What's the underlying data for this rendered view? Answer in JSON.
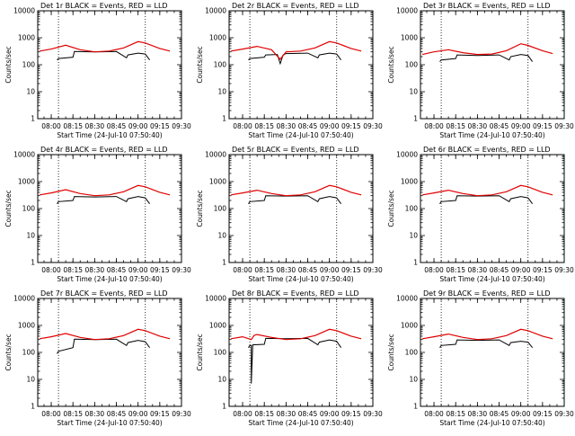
{
  "colors": {
    "events": "#000000",
    "lld": "#e00000",
    "background": "#ffffff"
  },
  "chart_data": [
    {
      "type": "line",
      "title": "Det 1r BLACK = Events, RED = LLD",
      "xlabel": "Start Time (24-Jul-10 07:50:40)",
      "ylabel": "Counts/sec",
      "yscale": "log",
      "ylim": [
        1,
        10000
      ],
      "xlim": [
        "07:50:40",
        "09:30"
      ],
      "xticks": [
        "08:00",
        "08:15",
        "08:30",
        "08:45",
        "09:00",
        "09:15",
        "09:30"
      ],
      "yticks": [
        "1",
        "10",
        "100",
        "1000",
        "10000"
      ],
      "vertical_markers": [
        "08:05",
        "09:05"
      ],
      "series": [
        {
          "name": "Events",
          "color": "#000000",
          "x": [
            "08:04",
            "08:05",
            "08:15",
            "08:16",
            "08:30",
            "08:45",
            "08:52",
            "08:53",
            "09:00",
            "09:05",
            "09:08"
          ],
          "y": [
            150,
            170,
            190,
            310,
            300,
            310,
            180,
            230,
            270,
            250,
            150
          ]
        },
        {
          "name": "LLD",
          "color": "#e00000",
          "x": [
            "07:52",
            "08:00",
            "08:10",
            "08:20",
            "08:30",
            "08:40",
            "08:50",
            "09:00",
            "09:05",
            "09:15",
            "09:22"
          ],
          "y": [
            320,
            380,
            530,
            360,
            300,
            320,
            420,
            720,
            640,
            400,
            320
          ]
        }
      ]
    },
    {
      "type": "line",
      "title": "Det 2r BLACK = Events, RED = LLD",
      "xlabel": "Start Time (24-Jul-10 07:50:40)",
      "ylabel": "Counts/sec",
      "yscale": "log",
      "ylim": [
        1,
        10000
      ],
      "xlim": [
        "07:50:40",
        "09:30"
      ],
      "xticks": [
        "08:00",
        "08:15",
        "08:30",
        "08:45",
        "09:00",
        "09:15",
        "09:30"
      ],
      "yticks": [
        "1",
        "10",
        "100",
        "1000",
        "10000"
      ],
      "vertical_markers": [
        "08:05",
        "09:05"
      ],
      "series": [
        {
          "name": "Events",
          "color": "#000000",
          "x": [
            "08:04",
            "08:05",
            "08:15",
            "08:16",
            "08:24",
            "08:26",
            "08:28",
            "08:30",
            "08:45",
            "08:52",
            "08:53",
            "09:00",
            "09:05",
            "09:08"
          ],
          "y": [
            150,
            170,
            190,
            230,
            240,
            110,
            230,
            260,
            270,
            180,
            230,
            270,
            250,
            150
          ]
        },
        {
          "name": "LLD",
          "color": "#e00000",
          "x": [
            "07:52",
            "08:00",
            "08:10",
            "08:20",
            "08:26",
            "08:30",
            "08:40",
            "08:50",
            "09:00",
            "09:05",
            "09:15",
            "09:22"
          ],
          "y": [
            320,
            380,
            480,
            360,
            160,
            300,
            320,
            420,
            720,
            640,
            400,
            320
          ]
        }
      ]
    },
    {
      "type": "line",
      "title": "Det 3r BLACK = Events, RED = LLD",
      "xlabel": "Start Time (24-Jul-10 07:50:40)",
      "ylabel": "Counts/sec",
      "yscale": "log",
      "ylim": [
        1,
        10000
      ],
      "xlim": [
        "07:50:40",
        "09:30"
      ],
      "xticks": [
        "08:00",
        "08:15",
        "08:30",
        "08:45",
        "09:00",
        "09:15",
        "09:30"
      ],
      "yticks": [
        "1",
        "10",
        "100",
        "1000",
        "10000"
      ],
      "vertical_markers": [
        "08:05",
        "09:05"
      ],
      "series": [
        {
          "name": "Events",
          "color": "#000000",
          "x": [
            "08:04",
            "08:05",
            "08:15",
            "08:16",
            "08:30",
            "08:45",
            "08:52",
            "08:53",
            "09:00",
            "09:05",
            "09:08"
          ],
          "y": [
            130,
            150,
            170,
            230,
            220,
            230,
            150,
            200,
            240,
            220,
            130
          ]
        },
        {
          "name": "LLD",
          "color": "#e00000",
          "x": [
            "07:52",
            "08:00",
            "08:10",
            "08:20",
            "08:30",
            "08:40",
            "08:50",
            "09:00",
            "09:05",
            "09:15",
            "09:22"
          ],
          "y": [
            240,
            300,
            360,
            280,
            240,
            250,
            330,
            600,
            520,
            330,
            260
          ]
        }
      ]
    },
    {
      "type": "line",
      "title": "Det 4r BLACK = Events, RED = LLD",
      "xlabel": "Start Time (24-Jul-10 07:50:40)",
      "ylabel": "Counts/sec",
      "yscale": "log",
      "ylim": [
        1,
        10000
      ],
      "xlim": [
        "07:50:40",
        "09:30"
      ],
      "xticks": [
        "08:00",
        "08:15",
        "08:30",
        "08:45",
        "09:00",
        "09:15",
        "09:30"
      ],
      "yticks": [
        "1",
        "10",
        "100",
        "1000",
        "10000"
      ],
      "vertical_markers": [
        "08:05",
        "09:05"
      ],
      "series": [
        {
          "name": "Events",
          "color": "#000000",
          "x": [
            "08:04",
            "08:05",
            "08:15",
            "08:16",
            "08:30",
            "08:45",
            "08:52",
            "08:53",
            "09:00",
            "09:05",
            "09:08"
          ],
          "y": [
            150,
            180,
            200,
            280,
            270,
            280,
            180,
            230,
            280,
            250,
            150
          ]
        },
        {
          "name": "LLD",
          "color": "#e00000",
          "x": [
            "07:52",
            "08:00",
            "08:10",
            "08:20",
            "08:30",
            "08:40",
            "08:50",
            "09:00",
            "09:05",
            "09:15",
            "09:22"
          ],
          "y": [
            320,
            380,
            500,
            360,
            300,
            320,
            420,
            720,
            640,
            400,
            320
          ]
        }
      ]
    },
    {
      "type": "line",
      "title": "Det 5r BLACK = Events, RED = LLD",
      "xlabel": "Start Time (24-Jul-10 07:50:40)",
      "ylabel": "Counts/sec",
      "yscale": "log",
      "ylim": [
        1,
        10000
      ],
      "xlim": [
        "07:50:40",
        "09:30"
      ],
      "xticks": [
        "08:00",
        "08:15",
        "08:30",
        "08:45",
        "09:00",
        "09:15",
        "09:30"
      ],
      "yticks": [
        "1",
        "10",
        "100",
        "1000",
        "10000"
      ],
      "vertical_markers": [
        "08:05",
        "09:05"
      ],
      "series": [
        {
          "name": "Events",
          "color": "#000000",
          "x": [
            "08:04",
            "08:05",
            "08:15",
            "08:16",
            "08:30",
            "08:45",
            "08:52",
            "08:53",
            "09:00",
            "09:05",
            "09:08"
          ],
          "y": [
            150,
            180,
            200,
            300,
            290,
            300,
            180,
            230,
            280,
            250,
            150
          ]
        },
        {
          "name": "LLD",
          "color": "#e00000",
          "x": [
            "07:52",
            "08:00",
            "08:10",
            "08:20",
            "08:30",
            "08:40",
            "08:50",
            "09:00",
            "09:05",
            "09:15",
            "09:22"
          ],
          "y": [
            320,
            380,
            480,
            360,
            300,
            320,
            420,
            720,
            640,
            400,
            320
          ]
        }
      ]
    },
    {
      "type": "line",
      "title": "Det 6r BLACK = Events, RED = LLD",
      "xlabel": "Start Time (24-Jul-10 07:50:40)",
      "ylabel": "Counts/sec",
      "yscale": "log",
      "ylim": [
        1,
        10000
      ],
      "xlim": [
        "07:50:40",
        "09:30"
      ],
      "xticks": [
        "08:00",
        "08:15",
        "08:30",
        "08:45",
        "09:00",
        "09:15",
        "09:30"
      ],
      "yticks": [
        "1",
        "10",
        "100",
        "1000",
        "10000"
      ],
      "vertical_markers": [
        "08:05",
        "09:05"
      ],
      "series": [
        {
          "name": "Events",
          "color": "#000000",
          "x": [
            "08:04",
            "08:05",
            "08:15",
            "08:16",
            "08:30",
            "08:45",
            "08:52",
            "08:53",
            "09:00",
            "09:05",
            "09:08"
          ],
          "y": [
            150,
            180,
            200,
            300,
            290,
            300,
            180,
            230,
            280,
            250,
            150
          ]
        },
        {
          "name": "LLD",
          "color": "#e00000",
          "x": [
            "07:52",
            "08:00",
            "08:10",
            "08:20",
            "08:30",
            "08:40",
            "08:50",
            "09:00",
            "09:05",
            "09:15",
            "09:22"
          ],
          "y": [
            320,
            380,
            480,
            360,
            300,
            320,
            420,
            720,
            640,
            400,
            320
          ]
        }
      ]
    },
    {
      "type": "line",
      "title": "Det 7r BLACK = Events, RED = LLD",
      "xlabel": "Start Time (24-Jul-10 07:50:40)",
      "ylabel": "Counts/sec",
      "yscale": "log",
      "ylim": [
        1,
        10000
      ],
      "xlim": [
        "07:50:40",
        "09:30"
      ],
      "xticks": [
        "08:00",
        "08:15",
        "08:30",
        "08:45",
        "09:00",
        "09:15",
        "09:30"
      ],
      "yticks": [
        "1",
        "10",
        "100",
        "1000",
        "10000"
      ],
      "vertical_markers": [
        "08:05",
        "09:05"
      ],
      "series": [
        {
          "name": "Events",
          "color": "#000000",
          "x": [
            "08:04",
            "08:05",
            "08:15",
            "08:16",
            "08:30",
            "08:45",
            "08:52",
            "08:53",
            "09:00",
            "09:05",
            "09:08"
          ],
          "y": [
            90,
            110,
            150,
            310,
            300,
            310,
            180,
            230,
            280,
            250,
            150
          ]
        },
        {
          "name": "LLD",
          "color": "#e00000",
          "x": [
            "07:52",
            "08:00",
            "08:10",
            "08:20",
            "08:30",
            "08:40",
            "08:50",
            "09:00",
            "09:05",
            "09:15",
            "09:22"
          ],
          "y": [
            320,
            380,
            500,
            360,
            300,
            320,
            420,
            720,
            640,
            400,
            320
          ]
        }
      ]
    },
    {
      "type": "line",
      "title": "Det 8r BLACK = Events, RED = LLD",
      "xlabel": "Start Time (24-Jul-10 07:50:40)",
      "ylabel": "Counts/sec",
      "yscale": "log",
      "ylim": [
        1,
        10000
      ],
      "xlim": [
        "07:50:40",
        "09:30"
      ],
      "xticks": [
        "08:00",
        "08:15",
        "08:30",
        "08:45",
        "09:00",
        "09:15",
        "09:30"
      ],
      "yticks": [
        "1",
        "10",
        "100",
        "1000",
        "10000"
      ],
      "vertical_markers": [
        "08:05",
        "09:05"
      ],
      "series": [
        {
          "name": "Events",
          "color": "#000000",
          "x": [
            "08:04",
            "08:05",
            "08:06",
            "08:06",
            "08:07",
            "08:15",
            "08:16",
            "08:30",
            "08:45",
            "08:52",
            "08:53",
            "09:00",
            "09:05",
            "09:08"
          ],
          "y": [
            150,
            180,
            180,
            7,
            190,
            200,
            330,
            320,
            330,
            190,
            240,
            290,
            260,
            150
          ]
        },
        {
          "name": "LLD",
          "color": "#e00000",
          "x": [
            "07:52",
            "08:00",
            "08:06",
            "08:08",
            "08:10",
            "08:20",
            "08:30",
            "08:40",
            "08:50",
            "09:00",
            "09:05",
            "09:15",
            "09:22"
          ],
          "y": [
            320,
            380,
            300,
            430,
            460,
            360,
            300,
            320,
            420,
            720,
            640,
            400,
            320
          ]
        }
      ]
    },
    {
      "type": "line",
      "title": "Det 9r BLACK = Events, RED = LLD",
      "xlabel": "Start Time (24-Jul-10 07:50:40)",
      "ylabel": "Counts/sec",
      "yscale": "log",
      "ylim": [
        1,
        10000
      ],
      "xlim": [
        "07:50:40",
        "09:30"
      ],
      "xticks": [
        "08:00",
        "08:15",
        "08:30",
        "08:45",
        "09:00",
        "09:15",
        "09:30"
      ],
      "yticks": [
        "1",
        "10",
        "100",
        "1000",
        "10000"
      ],
      "vertical_markers": [
        "08:05",
        "09:05"
      ],
      "series": [
        {
          "name": "Events",
          "color": "#000000",
          "x": [
            "08:04",
            "08:05",
            "08:15",
            "08:16",
            "08:30",
            "08:45",
            "08:52",
            "08:53",
            "09:00",
            "09:05",
            "09:08"
          ],
          "y": [
            150,
            180,
            200,
            290,
            280,
            290,
            180,
            230,
            260,
            240,
            150
          ]
        },
        {
          "name": "LLD",
          "color": "#e00000",
          "x": [
            "07:52",
            "08:00",
            "08:10",
            "08:20",
            "08:30",
            "08:40",
            "08:50",
            "09:00",
            "09:05",
            "09:15",
            "09:22"
          ],
          "y": [
            320,
            380,
            480,
            360,
            300,
            320,
            420,
            720,
            640,
            400,
            320
          ]
        }
      ]
    }
  ]
}
